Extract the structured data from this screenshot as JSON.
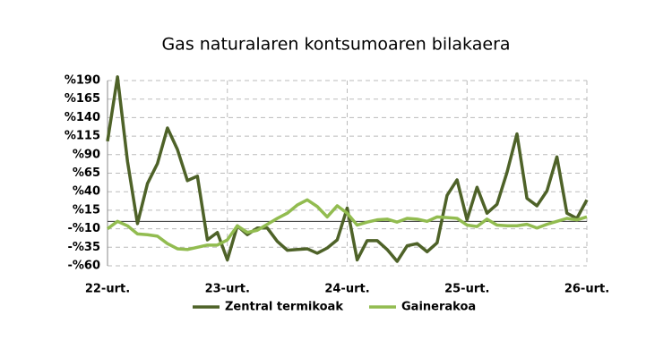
{
  "chart_data": {
    "type": "line",
    "title": "Gas naturalaren kontsumoaren bilakaera",
    "categories": [
      "22-urt.",
      null,
      null,
      null,
      null,
      null,
      null,
      null,
      null,
      null,
      null,
      null,
      "23-urt.",
      null,
      null,
      null,
      null,
      null,
      null,
      null,
      null,
      null,
      null,
      null,
      "24-urt.",
      null,
      null,
      null,
      null,
      null,
      null,
      null,
      null,
      null,
      null,
      null,
      "25-urt.",
      null,
      null,
      null,
      null,
      null,
      null,
      null,
      null,
      null,
      null,
      null,
      "26-urt."
    ],
    "series": [
      {
        "name": "Zentral termikoak",
        "color": "#4e6228",
        "values": [
          108,
          195,
          81,
          -3,
          51,
          78,
          126,
          97,
          55,
          61,
          -25,
          -15,
          -52,
          -6,
          -18,
          -9,
          -9,
          -27,
          -39,
          -38,
          -37,
          -43,
          -36,
          -25,
          18,
          -52,
          -26,
          -26,
          -38,
          -54,
          -33,
          -30,
          -41,
          -29,
          35,
          56,
          2,
          46,
          11,
          23,
          66,
          118,
          31,
          21,
          41,
          87,
          11,
          4,
          29
        ]
      },
      {
        "name": "Gainerakoa",
        "color": "#92bc50",
        "values": [
          -10,
          0,
          -6,
          -17,
          -18,
          -20,
          -30,
          -37,
          -38,
          -35,
          -32,
          -32,
          -25,
          -6,
          -15,
          -12,
          -4,
          4,
          11,
          22,
          29,
          20,
          6,
          21,
          11,
          -5,
          -1,
          2,
          3,
          -1,
          4,
          3,
          0,
          6,
          5,
          4,
          -5,
          -7,
          3,
          -5,
          -6,
          -6,
          -4,
          -9,
          -4,
          0,
          4,
          2,
          6
        ]
      }
    ],
    "ylim": [
      -60,
      190
    ],
    "yticks": [
      {
        "value": -60,
        "label": "-%60"
      },
      {
        "value": -35,
        "label": "-%35"
      },
      {
        "value": -10,
        "label": "-%10"
      },
      {
        "value": 15,
        "label": "%15"
      },
      {
        "value": 40,
        "label": "%40"
      },
      {
        "value": 65,
        "label": "%65"
      },
      {
        "value": 90,
        "label": "%90"
      },
      {
        "value": 115,
        "label": "%115"
      },
      {
        "value": 140,
        "label": "%140"
      },
      {
        "value": 165,
        "label": "%165"
      },
      {
        "value": 190,
        "label": "%190"
      }
    ],
    "grid": true,
    "legend": "bottom"
  }
}
